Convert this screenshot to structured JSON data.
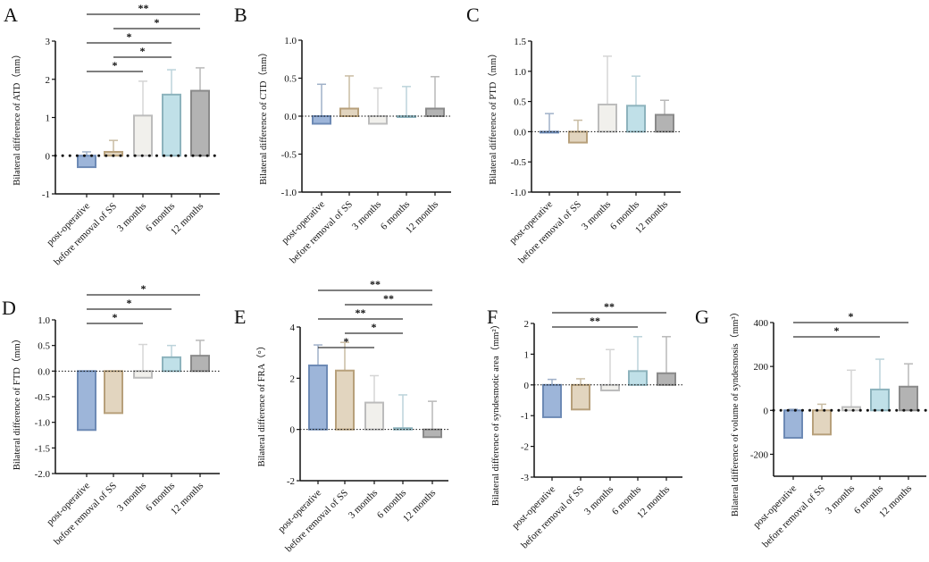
{
  "chart_data": [
    {
      "panel": "A",
      "type": "bar",
      "ylabel": "Bilateral difference of ATD（mm）",
      "ylim": [
        -1,
        3
      ],
      "yticks": [
        -1,
        0,
        1,
        2,
        3
      ],
      "zero_style": "bold-dotted",
      "categories": [
        "post-operative",
        "before removal of SS",
        "3 months",
        "6 months",
        "12 months"
      ],
      "values": [
        -0.3,
        0.1,
        1.05,
        1.6,
        1.7
      ],
      "error_upper": [
        0.1,
        0.4,
        1.95,
        2.25,
        2.3
      ],
      "significance": [
        {
          "pair": [
            0,
            4
          ],
          "label": "**"
        },
        {
          "pair": [
            1,
            4
          ],
          "label": "*"
        },
        {
          "pair": [
            0,
            3
          ],
          "label": "*"
        },
        {
          "pair": [
            1,
            3
          ],
          "label": "*"
        },
        {
          "pair": [
            0,
            2
          ],
          "label": "*"
        }
      ]
    },
    {
      "panel": "B",
      "type": "bar",
      "ylabel": "Bilateral difference of CTD（mm）",
      "ylim": [
        -1,
        1
      ],
      "yticks": [
        -1.0,
        -0.5,
        0.0,
        0.5,
        1.0
      ],
      "zero_style": "dotted",
      "categories": [
        "post-operative",
        "before removal of SS",
        "3 months",
        "6 months",
        "12 months"
      ],
      "values": [
        -0.1,
        0.1,
        -0.1,
        0.0,
        0.1
      ],
      "error_upper": [
        0.42,
        0.53,
        0.37,
        0.39,
        0.52
      ],
      "significance": []
    },
    {
      "panel": "C",
      "type": "bar",
      "ylabel": "Bilateral difference of PTD（mm）",
      "ylim": [
        -1,
        1.5
      ],
      "yticks": [
        -1.0,
        -0.5,
        0.0,
        0.5,
        1.0,
        1.5
      ],
      "zero_style": "dotted",
      "categories": [
        "post-operative",
        "before removal of SS",
        "3 months",
        "6 months",
        "12 months"
      ],
      "values": [
        0.0,
        -0.18,
        0.45,
        0.43,
        0.28
      ],
      "error_upper": [
        0.3,
        0.19,
        1.25,
        0.92,
        0.52
      ],
      "significance": []
    },
    {
      "panel": "D",
      "type": "bar",
      "ylabel": "Bilateral difference of FTD（mm）",
      "ylim": [
        -2,
        1
      ],
      "yticks": [
        -2.0,
        -1.5,
        -1.0,
        -0.5,
        0.0,
        0.5,
        1.0
      ],
      "zero_style": "dotted",
      "categories": [
        "post-operative",
        "before removal of SS",
        "3 months",
        "6 months",
        "12 months"
      ],
      "values": [
        -1.15,
        -0.82,
        -0.13,
        0.27,
        0.3
      ],
      "error_upper": [
        -0.55,
        0.0,
        0.52,
        0.5,
        0.6
      ],
      "significance": [
        {
          "pair": [
            0,
            4
          ],
          "label": "*"
        },
        {
          "pair": [
            0,
            3
          ],
          "label": "*"
        },
        {
          "pair": [
            0,
            2
          ],
          "label": "*"
        }
      ]
    },
    {
      "panel": "E",
      "type": "bar",
      "ylabel": "Bilateral difference of FRA（°）",
      "ylim": [
        -2,
        4
      ],
      "yticks": [
        -2,
        0,
        2,
        4
      ],
      "zero_style": "dotted",
      "categories": [
        "post-operative",
        "before removal of SS",
        "3 months",
        "6 months",
        "12 months"
      ],
      "values": [
        2.5,
        2.3,
        1.05,
        0.05,
        -0.3
      ],
      "error_upper": [
        3.3,
        3.4,
        2.1,
        1.35,
        1.1
      ],
      "significance": [
        {
          "pair": [
            0,
            4
          ],
          "label": "**"
        },
        {
          "pair": [
            1,
            4
          ],
          "label": "**"
        },
        {
          "pair": [
            0,
            3
          ],
          "label": "**"
        },
        {
          "pair": [
            1,
            3
          ],
          "label": "*"
        },
        {
          "pair": [
            0,
            2
          ],
          "label": "*"
        }
      ]
    },
    {
      "panel": "F",
      "type": "bar",
      "ylabel": "Bilateral difference of  syndesmotic area（mm²）",
      "ylim": [
        -3,
        2
      ],
      "yticks": [
        -3,
        -2,
        -1,
        0,
        1,
        2
      ],
      "zero_style": "dotted",
      "categories": [
        "post-operative",
        "before removal of SS",
        "3 months",
        "6 months",
        "12 months"
      ],
      "values": [
        -1.05,
        -0.8,
        -0.18,
        0.45,
        0.38
      ],
      "error_upper": [
        0.18,
        0.2,
        1.15,
        1.57,
        1.57
      ],
      "significance": [
        {
          "pair": [
            0,
            4
          ],
          "label": "**"
        },
        {
          "pair": [
            0,
            3
          ],
          "label": "**"
        }
      ]
    },
    {
      "panel": "G",
      "type": "bar",
      "ylabel": "Bilateral difference of  volume of syndesmosis（mm³）",
      "ylim": [
        -300,
        400
      ],
      "yticks": [
        -200,
        0,
        200,
        400
      ],
      "zero_style": "bold-dotted",
      "categories": [
        "post-operative",
        "before removal of SS",
        "3 months",
        "6 months",
        "12 months"
      ],
      "values": [
        -125,
        -110,
        15,
        95,
        108
      ],
      "error_upper": [
        5,
        28,
        183,
        233,
        212
      ],
      "significance": [
        {
          "pair": [
            0,
            4
          ],
          "label": "*"
        },
        {
          "pair": [
            0,
            3
          ],
          "label": "*"
        }
      ]
    }
  ],
  "colors": {
    "fills": [
      "#9db5d9",
      "#e2d5bf",
      "#f1f0ec",
      "#c0e0e8",
      "#b3b3b3"
    ],
    "strokes": [
      "#6d8ab5",
      "#b7a07b",
      "#bcbcbc",
      "#8db3bd",
      "#8a8a8a"
    ],
    "errors": [
      "#9fb0c8",
      "#c9bca3",
      "#d5d5d5",
      "#bcd3da",
      "#b9b9b9"
    ]
  }
}
